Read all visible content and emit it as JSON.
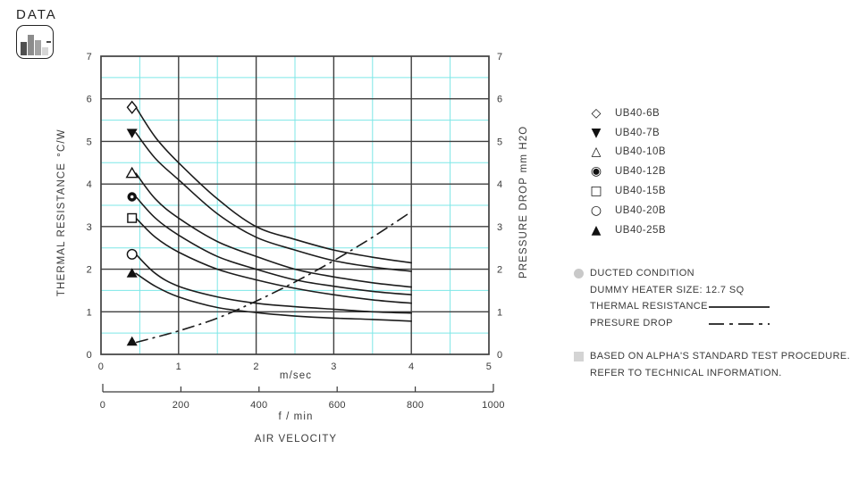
{
  "header": {
    "logo_text": "DATA"
  },
  "chart_data": {
    "type": "line",
    "x_axis": {
      "unit_label": "m/sec",
      "min": 0,
      "max": 5,
      "major_ticks": [
        0,
        1,
        2,
        3,
        4,
        5
      ],
      "minor_step": 0.5
    },
    "x_axis_secondary": {
      "unit_label": "f / min",
      "ticks": [
        0,
        200,
        400,
        600,
        800,
        1000
      ]
    },
    "x_axis_title": "AIR VELOCITY",
    "left_axis": {
      "title": "THERMAL RESISTANCE",
      "unit_label": "°C/W",
      "min": 0,
      "max": 7,
      "ticks": [
        0,
        1,
        2,
        3,
        4,
        5,
        6,
        7
      ],
      "minor_step": 0.5
    },
    "right_axis": {
      "title": "PRESSURE DROP",
      "unit_label": "mm H2O",
      "min": 0,
      "max": 7,
      "ticks": [
        0,
        1,
        2,
        3,
        4,
        5,
        6,
        7
      ]
    },
    "grid": {
      "major_color": "#3f3f3f",
      "minor_color": "#7de7e7"
    },
    "curve_color": "#1c1c1c",
    "marker_x": 0.4,
    "x": [
      0.45,
      0.7,
      1.0,
      1.5,
      2.0,
      2.5,
      3.0,
      3.5,
      4.0
    ],
    "series": [
      {
        "label": "UB40-6B",
        "marker": "diamond-open",
        "icon_char": "◇",
        "marker_y": 5.8,
        "values": [
          5.8,
          5.1,
          4.5,
          3.65,
          3.0,
          2.7,
          2.45,
          2.28,
          2.15
        ]
      },
      {
        "label": "UB40-7B",
        "marker": "triangle-down-filled",
        "icon_char": "▼",
        "marker_y": 5.2,
        "values": [
          5.2,
          4.6,
          4.1,
          3.3,
          2.75,
          2.45,
          2.2,
          2.05,
          1.95
        ]
      },
      {
        "label": "UB40-10B",
        "marker": "triangle-up-open",
        "icon_char": "△",
        "marker_y": 4.25,
        "values": [
          4.25,
          3.65,
          3.2,
          2.65,
          2.3,
          2.0,
          1.82,
          1.68,
          1.58
        ]
      },
      {
        "label": "UB40-12B",
        "marker": "circle-dot",
        "icon_char": "◉",
        "marker_y": 3.7,
        "values": [
          3.7,
          3.2,
          2.8,
          2.3,
          2.0,
          1.75,
          1.6,
          1.48,
          1.4
        ]
      },
      {
        "label": "UB40-15B",
        "marker": "square-open",
        "icon_char": "□",
        "marker_y": 3.2,
        "values": [
          3.2,
          2.75,
          2.4,
          2.0,
          1.75,
          1.55,
          1.4,
          1.28,
          1.2
        ]
      },
      {
        "label": "UB40-20B",
        "marker": "circle-open",
        "icon_char": "○",
        "marker_y": 2.35,
        "values": [
          2.35,
          1.9,
          1.6,
          1.35,
          1.2,
          1.12,
          1.06,
          1.0,
          0.97
        ]
      },
      {
        "label": "UB40-25B",
        "marker": "triangle-up-filled",
        "icon_char": "▲",
        "marker_y": 1.9,
        "values": [
          1.9,
          1.6,
          1.35,
          1.1,
          0.98,
          0.9,
          0.85,
          0.82,
          0.78
        ]
      }
    ],
    "pressure_series": {
      "label": "PRESURE DROP",
      "marker": "triangle-up-filled",
      "marker_y": 0.3,
      "line_style": "dash-dot",
      "values": [
        0.28,
        0.4,
        0.55,
        0.85,
        1.25,
        1.7,
        2.2,
        2.75,
        3.35
      ]
    }
  },
  "notes": {
    "condition": "DUCTED CONDITION",
    "heater": "DUMMY HEATER SIZE: 12.7 SQ",
    "thermal_label": "THERMAL RESISTANCE",
    "pressure_label": "PRESURE DROP"
  },
  "footnote": {
    "line1": "BASED ON ALPHA'S STANDARD TEST PROCEDURE.",
    "line2": "REFER TO TECHNICAL INFORMATION."
  }
}
